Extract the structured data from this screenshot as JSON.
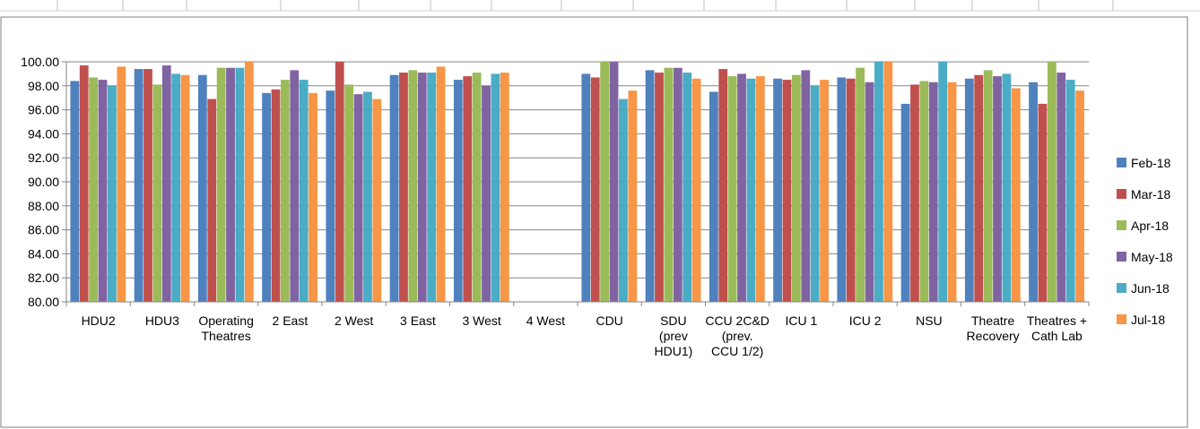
{
  "chart_data": {
    "type": "bar",
    "title": "",
    "xlabel": "",
    "ylabel": "",
    "ylim": [
      80,
      100
    ],
    "ytick_step": 2,
    "ytick_labels": [
      "80.00",
      "82.00",
      "84.00",
      "86.00",
      "88.00",
      "90.00",
      "92.00",
      "94.00",
      "96.00",
      "98.00",
      "100.00"
    ],
    "grid": true,
    "legend_position": "right",
    "categories": [
      [
        "HDU2"
      ],
      [
        "HDU3"
      ],
      [
        "Operating",
        "Theatres"
      ],
      [
        "2 East"
      ],
      [
        "2 West"
      ],
      [
        "3 East"
      ],
      [
        "3 West"
      ],
      [
        "4 West"
      ],
      [
        "CDU"
      ],
      [
        "SDU",
        "(prev",
        "HDU1)"
      ],
      [
        "CCU 2C&D",
        "(prev.",
        "CCU 1/2)"
      ],
      [
        "ICU 1"
      ],
      [
        "ICU 2"
      ],
      [
        "NSU"
      ],
      [
        "Theatre",
        "Recovery"
      ],
      [
        "Theatres +",
        "Cath Lab"
      ]
    ],
    "series": [
      {
        "name": "Feb-18",
        "color": "#4f81bd",
        "values": [
          98.4,
          99.4,
          98.9,
          97.4,
          97.6,
          98.9,
          98.5,
          null,
          99.0,
          99.3,
          97.5,
          98.6,
          98.7,
          96.5,
          98.6,
          98.3
        ]
      },
      {
        "name": "Mar-18",
        "color": "#c0504d",
        "values": [
          99.7,
          99.4,
          96.9,
          97.7,
          100.0,
          99.1,
          98.8,
          null,
          98.7,
          99.1,
          99.4,
          98.5,
          98.6,
          98.1,
          98.9,
          96.5
        ]
      },
      {
        "name": "Apr-18",
        "color": "#9bbb59",
        "values": [
          98.7,
          98.1,
          99.5,
          98.5,
          98.1,
          99.3,
          99.1,
          null,
          100.0,
          99.5,
          98.8,
          98.9,
          99.5,
          98.4,
          99.3,
          100.0
        ]
      },
      {
        "name": "May-18",
        "color": "#8064a2",
        "values": [
          98.5,
          99.7,
          99.5,
          99.3,
          97.3,
          99.1,
          98.0,
          null,
          100.0,
          99.5,
          99.0,
          99.3,
          98.3,
          98.3,
          98.8,
          99.1
        ]
      },
      {
        "name": "Jun-18",
        "color": "#4bacc6",
        "values": [
          98.0,
          99.0,
          99.5,
          98.5,
          97.5,
          99.1,
          99.0,
          null,
          96.9,
          99.1,
          98.6,
          98.0,
          100.0,
          100.0,
          99.0,
          98.5
        ]
      },
      {
        "name": "Jul-18",
        "color": "#f79646",
        "values": [
          99.6,
          98.9,
          100.0,
          97.4,
          96.9,
          99.6,
          99.1,
          null,
          97.6,
          98.6,
          98.8,
          98.5,
          100.0,
          98.3,
          97.8,
          97.6
        ]
      }
    ]
  }
}
